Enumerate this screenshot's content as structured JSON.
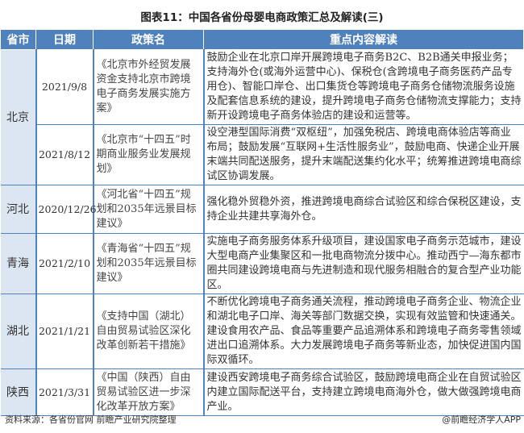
{
  "title": "图表11：中国各省份母婴电商政策汇总及解读(三)",
  "headers": [
    "省市",
    "日期",
    "政策名",
    "重点内容解读"
  ],
  "rows": [
    {
      "province": "北京",
      "date": "2021/9/8",
      "policy": "《北京市外经贸发展资金支持北京市跨境电子商务发展实施方案》",
      "content": "鼓励企业在北京口岸开展跨境电子商务B2C、B2B通关申报业务；支持海外仓(或海外运营中心)、保税仓(含跨境电子商务医药产品专用仓)、智能口岸仓、出口集货仓等跨境电子商务仓储物流服务设施及配套信息系统的建设，提升跨境电子商务仓储物流支撑能力；支持新开设跨境电子商务体验店的建设和运营等。"
    },
    {
      "province": "",
      "date": "2021/8/12",
      "policy": "《北京市“十四五”时期商业服务业发展规划》",
      "content": "设空港型国际消费“双枢纽”，加强免税店、跨境电商体验店等商业布局；鼓励发展“互联网+生活性服务业”，鼓励电商、快递企业开展末端共同配送服务，提升末端配送集约化水平；统筹推进跨境电商综试区协调发展。"
    },
    {
      "province": "河北",
      "date": "2020/12/26",
      "policy": "《河北省“十四五”规划和2035年远景目标建议》",
      "content": "强化稳外贸稳外资，推进跨境电商综合试验区和综合保税区建设，支持企业共建共享海外仓。"
    },
    {
      "province": "青海",
      "date": "2021/2/10",
      "policy": "《青海省“十四五”规划和2035年远景目标建议》",
      "content": "实施电子商务服务体系升级项目，建设国家电子商务示范城市，建设大型电商产业集聚区和一批电商物流分拨中心。推动西宁—海东都市圈共同建设跨境电商与先进制造和现代服务相融合的复合型产业功能区。"
    },
    {
      "province": "湖北",
      "date": "2021/1/21",
      "policy": "《支持中国（湖北）自由贸易试验区深化改革创新若干措施》",
      "content": "不断优化跨境电子商务通关流程，推动跨境电子商务企业、物流企业和湖北电子口岸、海关等部门数据交换，实现有效监管和快速通关。建设食用农产品、食品等重要产品追溯体系和跨境电子商务零售领域进出口追溯体系。大力发展跨境电子商务等新业态，加快促进国内国际双循环。"
    },
    {
      "province": "陕西",
      "date": "2021/3/31",
      "policy": "《中国（陕西）自由贸易试验区进一步深化改革开放方案》",
      "content": "建设西安跨境电子商务综合试验区，鼓励跨境电商企业在自贸试验区内建立国际配送平台，支持建立跨境电商海外仓，做大做强跨境电商产业。"
    }
  ],
  "footer": {
    "source": "资料来源：各省份官网 前瞻产业研究院整理",
    "credit": "@前瞻经济学人APP"
  },
  "colors": {
    "header": "#4f81bd",
    "province_bg": "#dce6f2"
  }
}
